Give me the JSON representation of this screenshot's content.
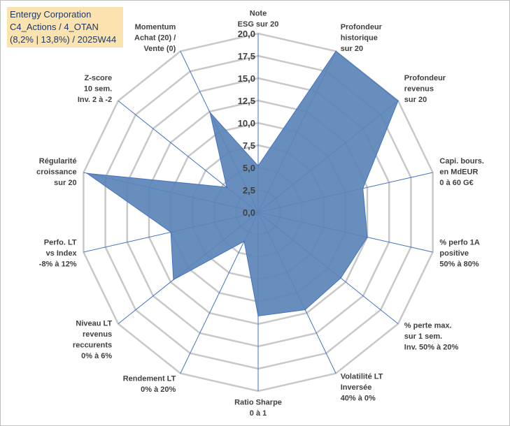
{
  "title_box": {
    "line1": "Entergy Corporation",
    "line2": "C4_Actions / 4_OTAN",
    "line3": "(8,2% | 13,8%) / 2025W44"
  },
  "colors": {
    "fill": "#5b84b8",
    "stroke": "#4472c4",
    "grid": "#c8c8c8",
    "spoke": "#4472c4",
    "title_bg": "#fbe3b0"
  },
  "chart_data": {
    "type": "radar",
    "title": "",
    "rmin": 0,
    "rmax": 20,
    "ticks": [
      "0,0",
      "2,5",
      "5,0",
      "7,5",
      "10,0",
      "12,5",
      "15,0",
      "17,5",
      "20,0"
    ],
    "tick_values": [
      0,
      2.5,
      5,
      7.5,
      10,
      12.5,
      15,
      17.5,
      20
    ],
    "axes": [
      {
        "label": [
          "Note",
          "ESG sur 20"
        ],
        "value": 5.2
      },
      {
        "label": [
          "Profondeur",
          "historique",
          "sur 20"
        ],
        "value": 20
      },
      {
        "label": [
          "Profondeur",
          "revenus",
          "sur 20"
        ],
        "value": 20
      },
      {
        "label": [
          "Capi. bours.",
          "en MdEUR",
          "0 à 60 G€"
        ],
        "value": 12
      },
      {
        "label": [
          "% perfo 1A",
          "positive",
          "50% à 80%"
        ],
        "value": 12.5
      },
      {
        "label": [
          "% perte max.",
          "sur 1 sem.",
          "Inv. 50% à 20%"
        ],
        "value": 11.8
      },
      {
        "label": [
          "Volatilité LT",
          "Inversée",
          "40% à 0%"
        ],
        "value": 12.1
      },
      {
        "label": [
          "Ratio Sharpe",
          "0 à 1"
        ],
        "value": 11.6
      },
      {
        "label": [
          "Rendement LT",
          "0% à 20%"
        ],
        "value": 3.6
      },
      {
        "label": [
          "Niveau LT",
          "revenus",
          "reccurents",
          "0% à 6%"
        ],
        "value": 12.1
      },
      {
        "label": [
          "Perfo. LT",
          "vs Index",
          "-8% à 12%"
        ],
        "value": 10.0
      },
      {
        "label": [
          "Régularité",
          "croissance",
          "sur 20"
        ],
        "value": 19.6
      },
      {
        "label": [
          "Z-score",
          "10 sem.",
          "Inv. 2 à -2"
        ],
        "value": 4.5
      },
      {
        "label": [
          "Momentum",
          "Achat (20) /",
          "Vente (0)"
        ],
        "value": 12.4
      }
    ]
  }
}
